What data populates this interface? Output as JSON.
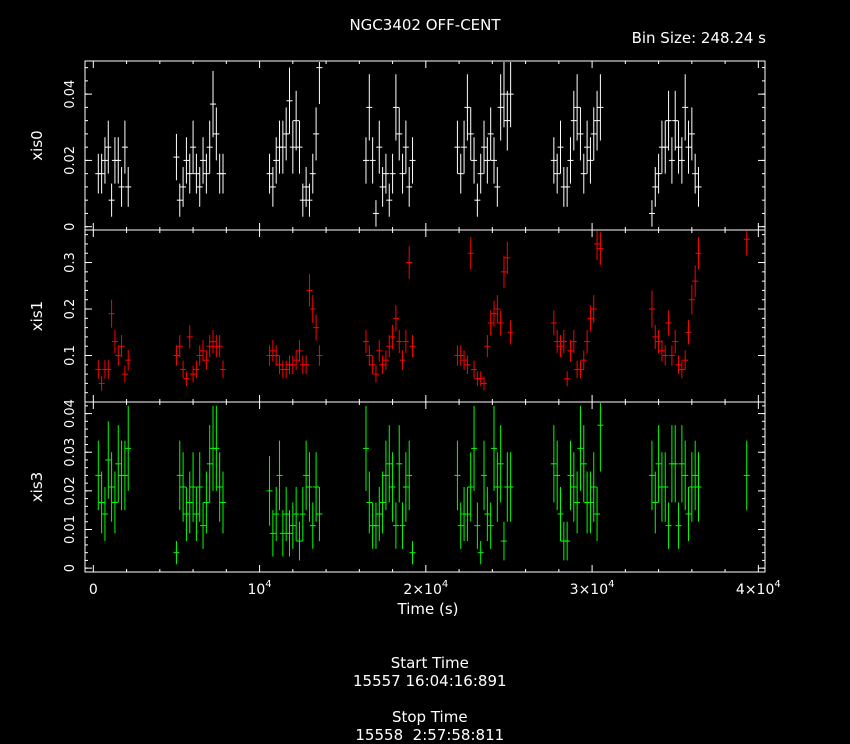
{
  "title": "NGC3402 OFF-CENT",
  "bin_size_label": "Bin Size: 248.24 s",
  "footer": {
    "start_label": "Start Time",
    "start_value": "15557 16:04:16:891",
    "stop_label": "Stop Time",
    "stop_value": "15558  2:57:58:811"
  },
  "x_axis": {
    "label": "Time (s)",
    "range": [
      -500,
      40400
    ],
    "ticks": [
      {
        "value": 0,
        "mantissa": "0",
        "exp": ""
      },
      {
        "value": 10000,
        "mantissa": "10",
        "exp": "4"
      },
      {
        "value": 20000,
        "mantissa": "2×10",
        "exp": "4"
      },
      {
        "value": 30000,
        "mantissa": "3×10",
        "exp": "4"
      },
      {
        "value": 40000,
        "mantissa": "4×10",
        "exp": "4"
      }
    ]
  },
  "colors": {
    "xis0": "#ffffff",
    "xis1": "#ff0000",
    "xis3": "#00ff00",
    "frame": "#ffffff",
    "background": "#000000"
  },
  "chart_data": [
    {
      "type": "scatter",
      "ylabel": "xis0",
      "ylim": [
        -0.001,
        0.05
      ],
      "yticks": [
        0,
        0.02,
        0.04
      ],
      "ytick_labels": [
        "0",
        "0.02",
        "0.04"
      ],
      "error_bars": true,
      "x": [
        300,
        500,
        700,
        900,
        1100,
        1300,
        1500,
        1700,
        1900,
        2100,
        5000,
        5200,
        5400,
        5600,
        5800,
        6000,
        6200,
        6400,
        6600,
        6800,
        7000,
        7200,
        7400,
        7600,
        7800,
        10600,
        10800,
        11000,
        11200,
        11400,
        11600,
        11800,
        12000,
        12200,
        12400,
        12600,
        12800,
        13000,
        13200,
        13400,
        13600,
        16400,
        16600,
        16800,
        17000,
        17200,
        17400,
        17600,
        17800,
        18000,
        18200,
        18400,
        18600,
        18800,
        19000,
        19200,
        21900,
        22100,
        22300,
        22500,
        22700,
        22900,
        23100,
        23300,
        23500,
        23700,
        23900,
        24100,
        24300,
        24500,
        24700,
        24900,
        25100,
        27700,
        27900,
        28100,
        28300,
        28500,
        28700,
        28900,
        29100,
        29300,
        29500,
        29700,
        29900,
        30100,
        30300,
        30500,
        33600,
        33800,
        34000,
        34200,
        34400,
        34600,
        34800,
        35000,
        35200,
        35400,
        35600,
        35800,
        36000,
        36200,
        36400
      ],
      "y": [
        0.016,
        0.016,
        0.02,
        0.024,
        0.008,
        0.02,
        0.02,
        0.012,
        0.024,
        0.012,
        0.021,
        0.008,
        0.012,
        0.02,
        0.016,
        0.024,
        0.016,
        0.012,
        0.02,
        0.016,
        0.024,
        0.037,
        0.028,
        0.016,
        0.016,
        0.016,
        0.012,
        0.02,
        0.024,
        0.024,
        0.028,
        0.038,
        0.024,
        0.032,
        0.024,
        0.008,
        0.012,
        0.008,
        0.016,
        0.028,
        0.048,
        0.02,
        0.036,
        0.02,
        0.004,
        0.024,
        0.012,
        0.016,
        0.008,
        0.016,
        0.036,
        0.028,
        0.016,
        0.024,
        0.012,
        0.02,
        0.024,
        0.016,
        0.024,
        0.036,
        0.028,
        0.02,
        0.008,
        0.016,
        0.024,
        0.02,
        0.028,
        0.02,
        0.012,
        0.036,
        0.04,
        0.032,
        0.04,
        0.02,
        0.016,
        0.024,
        0.012,
        0.012,
        0.02,
        0.032,
        0.036,
        0.028,
        0.016,
        0.024,
        0.02,
        0.028,
        0.032,
        0.036,
        0.004,
        0.012,
        0.016,
        0.024,
        0.024,
        0.032,
        0.02,
        0.032,
        0.024,
        0.02,
        0.036,
        0.024,
        0.028,
        0.016,
        0.012
      ],
      "yerr": [
        0.006,
        0.006,
        0.007,
        0.008,
        0.005,
        0.007,
        0.007,
        0.006,
        0.008,
        0.006,
        0.007,
        0.005,
        0.006,
        0.007,
        0.006,
        0.008,
        0.006,
        0.006,
        0.007,
        0.006,
        0.008,
        0.01,
        0.008,
        0.006,
        0.006,
        0.006,
        0.006,
        0.007,
        0.008,
        0.008,
        0.008,
        0.01,
        0.008,
        0.009,
        0.008,
        0.005,
        0.006,
        0.005,
        0.006,
        0.008,
        0.011,
        0.007,
        0.01,
        0.007,
        0.004,
        0.008,
        0.006,
        0.006,
        0.005,
        0.006,
        0.01,
        0.008,
        0.006,
        0.008,
        0.006,
        0.007,
        0.008,
        0.006,
        0.008,
        0.01,
        0.008,
        0.007,
        0.005,
        0.006,
        0.008,
        0.007,
        0.008,
        0.007,
        0.006,
        0.01,
        0.01,
        0.009,
        0.01,
        0.007,
        0.006,
        0.008,
        0.006,
        0.006,
        0.007,
        0.009,
        0.01,
        0.008,
        0.006,
        0.008,
        0.007,
        0.008,
        0.009,
        0.01,
        0.004,
        0.006,
        0.006,
        0.008,
        0.008,
        0.009,
        0.007,
        0.009,
        0.008,
        0.007,
        0.01,
        0.008,
        0.008,
        0.006,
        0.006
      ]
    },
    {
      "type": "scatter",
      "ylabel": "xis1",
      "ylim": [
        0,
        0.37
      ],
      "yticks": [
        0.1,
        0.2,
        0.3
      ],
      "ytick_labels": [
        "0.1",
        "0.2",
        "0.3"
      ],
      "error_bars": true,
      "x": [
        300,
        500,
        700,
        900,
        1100,
        1300,
        1500,
        1700,
        1900,
        2100,
        5000,
        5200,
        5400,
        5600,
        5800,
        6000,
        6200,
        6400,
        6600,
        6800,
        7000,
        7200,
        7400,
        7600,
        7800,
        10600,
        10800,
        11000,
        11200,
        11400,
        11600,
        11800,
        12000,
        12200,
        12400,
        12600,
        12800,
        13000,
        13200,
        13400,
        13600,
        16400,
        16600,
        16800,
        17000,
        17200,
        17400,
        17600,
        17800,
        18000,
        18200,
        18400,
        18600,
        18800,
        19000,
        19200,
        21900,
        22100,
        22300,
        22500,
        22700,
        22900,
        23100,
        23300,
        23500,
        23700,
        23900,
        24100,
        24300,
        24500,
        24700,
        24900,
        25100,
        27700,
        27900,
        28100,
        28300,
        28500,
        28700,
        28900,
        29100,
        29300,
        29500,
        29700,
        29900,
        30100,
        30300,
        30500,
        33600,
        33800,
        34000,
        34200,
        34400,
        34600,
        34800,
        35000,
        35200,
        35400,
        35600,
        35800,
        36000,
        36200,
        36400,
        39300
      ],
      "y": [
        0.07,
        0.04,
        0.07,
        0.07,
        0.19,
        0.13,
        0.1,
        0.12,
        0.06,
        0.09,
        0.1,
        0.12,
        0.07,
        0.05,
        0.14,
        0.06,
        0.07,
        0.1,
        0.11,
        0.09,
        0.12,
        0.13,
        0.12,
        0.12,
        0.07,
        0.1,
        0.11,
        0.1,
        0.08,
        0.07,
        0.07,
        0.08,
        0.08,
        0.09,
        0.11,
        0.08,
        0.08,
        0.24,
        0.2,
        0.16,
        0.1,
        0.13,
        0.1,
        0.08,
        0.06,
        0.11,
        0.08,
        0.09,
        0.12,
        0.14,
        0.18,
        0.13,
        0.09,
        0.13,
        0.3,
        0.12,
        0.1,
        0.1,
        0.09,
        0.08,
        0.32,
        0.07,
        0.05,
        0.05,
        0.04,
        0.12,
        0.17,
        0.19,
        0.2,
        0.17,
        0.28,
        0.31,
        0.15,
        0.17,
        0.13,
        0.12,
        0.13,
        0.05,
        0.11,
        0.13,
        0.07,
        0.07,
        0.09,
        0.13,
        0.18,
        0.2,
        0.34,
        0.33,
        0.2,
        0.14,
        0.13,
        0.11,
        0.1,
        0.17,
        0.1,
        0.13,
        0.08,
        0.07,
        0.09,
        0.15,
        0.22,
        0.26,
        0.32,
        0.35
      ],
      "yerr": [
        0.02,
        0.016,
        0.02,
        0.02,
        0.03,
        0.025,
        0.022,
        0.024,
        0.018,
        0.022,
        0.022,
        0.024,
        0.019,
        0.016,
        0.025,
        0.018,
        0.019,
        0.022,
        0.023,
        0.021,
        0.024,
        0.025,
        0.024,
        0.024,
        0.019,
        0.022,
        0.023,
        0.022,
        0.02,
        0.019,
        0.019,
        0.02,
        0.02,
        0.021,
        0.023,
        0.02,
        0.02,
        0.035,
        0.03,
        0.028,
        0.022,
        0.025,
        0.022,
        0.02,
        0.018,
        0.023,
        0.02,
        0.021,
        0.024,
        0.026,
        0.028,
        0.025,
        0.021,
        0.025,
        0.035,
        0.024,
        0.022,
        0.022,
        0.021,
        0.02,
        0.035,
        0.019,
        0.016,
        0.016,
        0.015,
        0.024,
        0.027,
        0.028,
        0.03,
        0.027,
        0.035,
        0.035,
        0.026,
        0.027,
        0.025,
        0.024,
        0.025,
        0.016,
        0.023,
        0.025,
        0.019,
        0.019,
        0.021,
        0.025,
        0.028,
        0.03,
        0.035,
        0.035,
        0.04,
        0.026,
        0.025,
        0.023,
        0.022,
        0.027,
        0.022,
        0.025,
        0.02,
        0.019,
        0.021,
        0.026,
        0.032,
        0.034,
        0.035,
        0.035
      ]
    },
    {
      "type": "scatter",
      "ylabel": "xis3",
      "ylim": [
        -0.001,
        0.043
      ],
      "yticks": [
        0,
        0.01,
        0.02,
        0.03,
        0.04
      ],
      "ytick_labels": [
        "0",
        "0.01",
        "0.02",
        "0.03",
        "0.04"
      ],
      "error_bars": true,
      "x": [
        300,
        500,
        700,
        900,
        1100,
        1300,
        1500,
        1700,
        1900,
        2100,
        5000,
        5200,
        5400,
        5600,
        5800,
        6000,
        6200,
        6400,
        6600,
        6800,
        7000,
        7200,
        7400,
        7600,
        7800,
        10600,
        10800,
        11000,
        11200,
        11400,
        11600,
        11800,
        12000,
        12200,
        12400,
        12600,
        12800,
        13000,
        13200,
        13400,
        13600,
        16400,
        16600,
        16800,
        17000,
        17200,
        17400,
        17600,
        17800,
        18000,
        18200,
        18400,
        18600,
        18800,
        19000,
        19200,
        21900,
        22100,
        22300,
        22500,
        22700,
        22900,
        23100,
        23300,
        23500,
        23700,
        23900,
        24100,
        24300,
        24500,
        24700,
        24900,
        25100,
        27700,
        27900,
        28100,
        28300,
        28500,
        28700,
        28900,
        29100,
        29300,
        29500,
        29700,
        29900,
        30100,
        30300,
        30500,
        33600,
        33800,
        34000,
        34200,
        34400,
        34600,
        34800,
        35000,
        35200,
        35400,
        35600,
        35800,
        36000,
        36200,
        36400,
        39300
      ],
      "y": [
        0.024,
        0.017,
        0.014,
        0.028,
        0.021,
        0.017,
        0.027,
        0.024,
        0.024,
        0.031,
        0.004,
        0.024,
        0.021,
        0.014,
        0.017,
        0.021,
        0.014,
        0.021,
        0.011,
        0.017,
        0.027,
        0.031,
        0.031,
        0.021,
        0.017,
        0.02,
        0.009,
        0.014,
        0.024,
        0.009,
        0.014,
        0.009,
        0.011,
        0.014,
        0.007,
        0.014,
        0.024,
        0.021,
        0.011,
        0.021,
        0.014,
        0.031,
        0.017,
        0.011,
        0.011,
        0.014,
        0.017,
        0.024,
        0.027,
        0.021,
        0.011,
        0.027,
        0.011,
        0.021,
        0.024,
        0.004,
        0.024,
        0.011,
        0.014,
        0.014,
        0.021,
        0.031,
        0.011,
        0.004,
        0.024,
        0.014,
        0.011,
        0.031,
        0.021,
        0.027,
        0.007,
        0.021,
        0.021,
        0.027,
        0.024,
        0.014,
        0.007,
        0.007,
        0.024,
        0.021,
        0.017,
        0.031,
        0.027,
        0.017,
        0.017,
        0.021,
        0.014,
        0.037,
        0.024,
        0.017,
        0.027,
        0.021,
        0.021,
        0.011,
        0.027,
        0.027,
        0.011,
        0.027,
        0.024,
        0.014,
        0.021,
        0.024,
        0.021,
        0.024
      ],
      "yerr": [
        0.009,
        0.008,
        0.007,
        0.01,
        0.009,
        0.008,
        0.01,
        0.009,
        0.009,
        0.011,
        0.003,
        0.009,
        0.009,
        0.007,
        0.008,
        0.009,
        0.007,
        0.009,
        0.006,
        0.008,
        0.01,
        0.011,
        0.011,
        0.009,
        0.008,
        0.009,
        0.006,
        0.007,
        0.009,
        0.006,
        0.007,
        0.006,
        0.006,
        0.007,
        0.005,
        0.007,
        0.009,
        0.009,
        0.006,
        0.009,
        0.007,
        0.011,
        0.008,
        0.006,
        0.006,
        0.007,
        0.008,
        0.009,
        0.01,
        0.009,
        0.006,
        0.01,
        0.006,
        0.009,
        0.009,
        0.003,
        0.009,
        0.006,
        0.007,
        0.007,
        0.009,
        0.011,
        0.006,
        0.003,
        0.009,
        0.007,
        0.006,
        0.011,
        0.009,
        0.01,
        0.005,
        0.009,
        0.009,
        0.01,
        0.009,
        0.007,
        0.005,
        0.005,
        0.009,
        0.009,
        0.008,
        0.011,
        0.01,
        0.008,
        0.008,
        0.009,
        0.007,
        0.012,
        0.009,
        0.008,
        0.01,
        0.009,
        0.009,
        0.006,
        0.01,
        0.01,
        0.006,
        0.01,
        0.009,
        0.007,
        0.009,
        0.009,
        0.009,
        0.009
      ]
    }
  ]
}
